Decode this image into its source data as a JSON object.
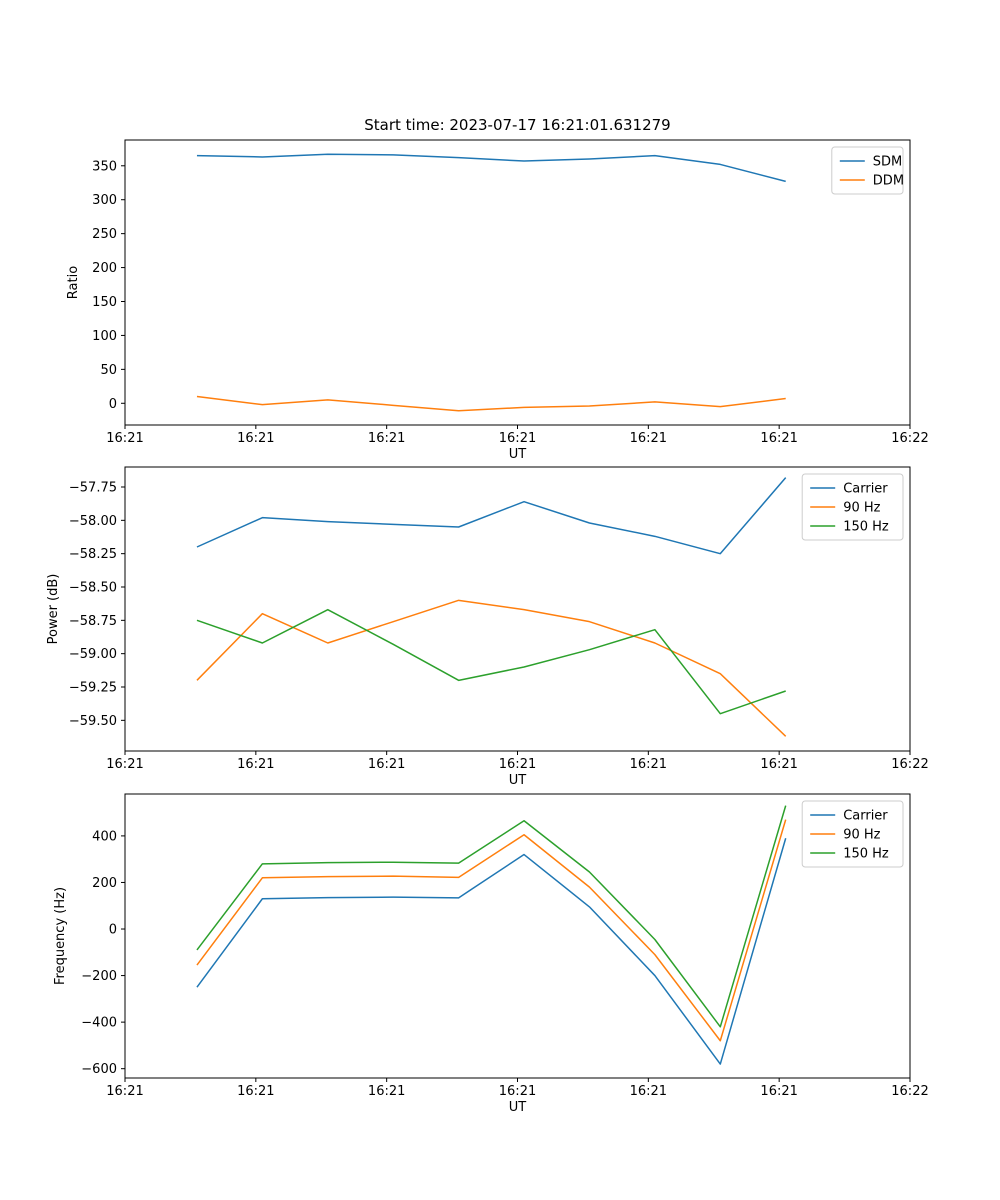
{
  "figure": {
    "title": "Start time: 2023-07-17 16:21:01.631279"
  },
  "palette": {
    "blue": "#1f77b4",
    "orange": "#ff7f0e",
    "green": "#2ca02c",
    "legend_border": "#cccccc",
    "axes_color": "#000000",
    "background": "#ffffff"
  },
  "chart_data": [
    {
      "type": "line",
      "title": "Start time: 2023-07-17 16:21:01.631279",
      "xlabel": "UT",
      "ylabel": "Ratio",
      "xlim": [
        0,
        60
      ],
      "ylim": [
        -32,
        388
      ],
      "xticks": [
        0,
        10,
        20,
        30,
        40,
        50,
        60
      ],
      "xticklabels": [
        "16:21",
        "16:21",
        "16:21",
        "16:21",
        "16:21",
        "16:21",
        "16:22"
      ],
      "yticks": [
        0,
        50,
        100,
        150,
        200,
        250,
        300,
        350
      ],
      "yticklabels": [
        "0",
        "50",
        "100",
        "150",
        "200",
        "250",
        "300",
        "350"
      ],
      "x": [
        5.5,
        10.5,
        15.5,
        20.5,
        25.5,
        30.5,
        35.5,
        40.5,
        45.5,
        50.5
      ],
      "legend_position": "upper right",
      "grid": false,
      "series": [
        {
          "name": "SDM",
          "color": "#1f77b4",
          "values": [
            365,
            363,
            367,
            366,
            362,
            357,
            360,
            365,
            352,
            327
          ]
        },
        {
          "name": "DDM",
          "color": "#ff7f0e",
          "values": [
            10,
            -2,
            5,
            -3,
            -11,
            -6,
            -4,
            2,
            -5,
            7
          ]
        }
      ]
    },
    {
      "type": "line",
      "title": "",
      "xlabel": "UT",
      "ylabel": "Power (dB)",
      "xlim": [
        0,
        60
      ],
      "ylim": [
        -59.73,
        -57.6
      ],
      "xticks": [
        0,
        10,
        20,
        30,
        40,
        50,
        60
      ],
      "xticklabels": [
        "16:21",
        "16:21",
        "16:21",
        "16:21",
        "16:21",
        "16:21",
        "16:22"
      ],
      "yticks": [
        -59.5,
        -59.25,
        -59.0,
        -58.75,
        -58.5,
        -58.25,
        -58.0,
        -57.75
      ],
      "yticklabels": [
        "−59.50",
        "−59.25",
        "−59.00",
        "−58.75",
        "−58.50",
        "−58.25",
        "−58.00",
        "−57.75"
      ],
      "x": [
        5.5,
        10.5,
        15.5,
        20.5,
        25.5,
        30.5,
        35.5,
        40.5,
        45.5,
        50.5
      ],
      "legend_position": "upper right",
      "grid": false,
      "series": [
        {
          "name": "Carrier",
          "color": "#1f77b4",
          "values": [
            -58.2,
            -57.98,
            -58.01,
            -58.03,
            -58.05,
            -57.86,
            -58.02,
            -58.12,
            -58.25,
            -57.68
          ]
        },
        {
          "name": "90 Hz",
          "color": "#ff7f0e",
          "values": [
            -59.2,
            -58.7,
            -58.92,
            -58.76,
            -58.6,
            -58.67,
            -58.76,
            -58.92,
            -59.15,
            -59.62
          ]
        },
        {
          "name": "150 Hz",
          "color": "#2ca02c",
          "values": [
            -58.75,
            -58.92,
            -58.67,
            -58.93,
            -59.2,
            -59.1,
            -58.97,
            -58.82,
            -59.45,
            -59.28
          ]
        }
      ]
    },
    {
      "type": "line",
      "title": "",
      "xlabel": "UT",
      "ylabel": "Frequency (Hz)",
      "xlim": [
        0,
        60
      ],
      "ylim": [
        -640,
        580
      ],
      "xticks": [
        0,
        10,
        20,
        30,
        40,
        50,
        60
      ],
      "xticklabels": [
        "16:21",
        "16:21",
        "16:21",
        "16:21",
        "16:21",
        "16:21",
        "16:22"
      ],
      "yticks": [
        -600,
        -400,
        -200,
        0,
        200,
        400
      ],
      "yticklabels": [
        "−600",
        "−400",
        "−200",
        "0",
        "200",
        "400"
      ],
      "x": [
        5.5,
        10.5,
        15.5,
        20.5,
        25.5,
        30.5,
        35.5,
        40.5,
        45.5,
        50.5
      ],
      "legend_position": "upper right",
      "grid": false,
      "series": [
        {
          "name": "Carrier",
          "color": "#1f77b4",
          "values": [
            -250,
            130,
            135,
            137,
            134,
            320,
            95,
            -200,
            -580,
            390
          ]
        },
        {
          "name": "90 Hz",
          "color": "#ff7f0e",
          "values": [
            -155,
            220,
            225,
            227,
            222,
            405,
            180,
            -110,
            -480,
            470
          ]
        },
        {
          "name": "150 Hz",
          "color": "#2ca02c",
          "values": [
            -90,
            280,
            285,
            287,
            283,
            465,
            245,
            -45,
            -420,
            530
          ]
        }
      ]
    }
  ]
}
